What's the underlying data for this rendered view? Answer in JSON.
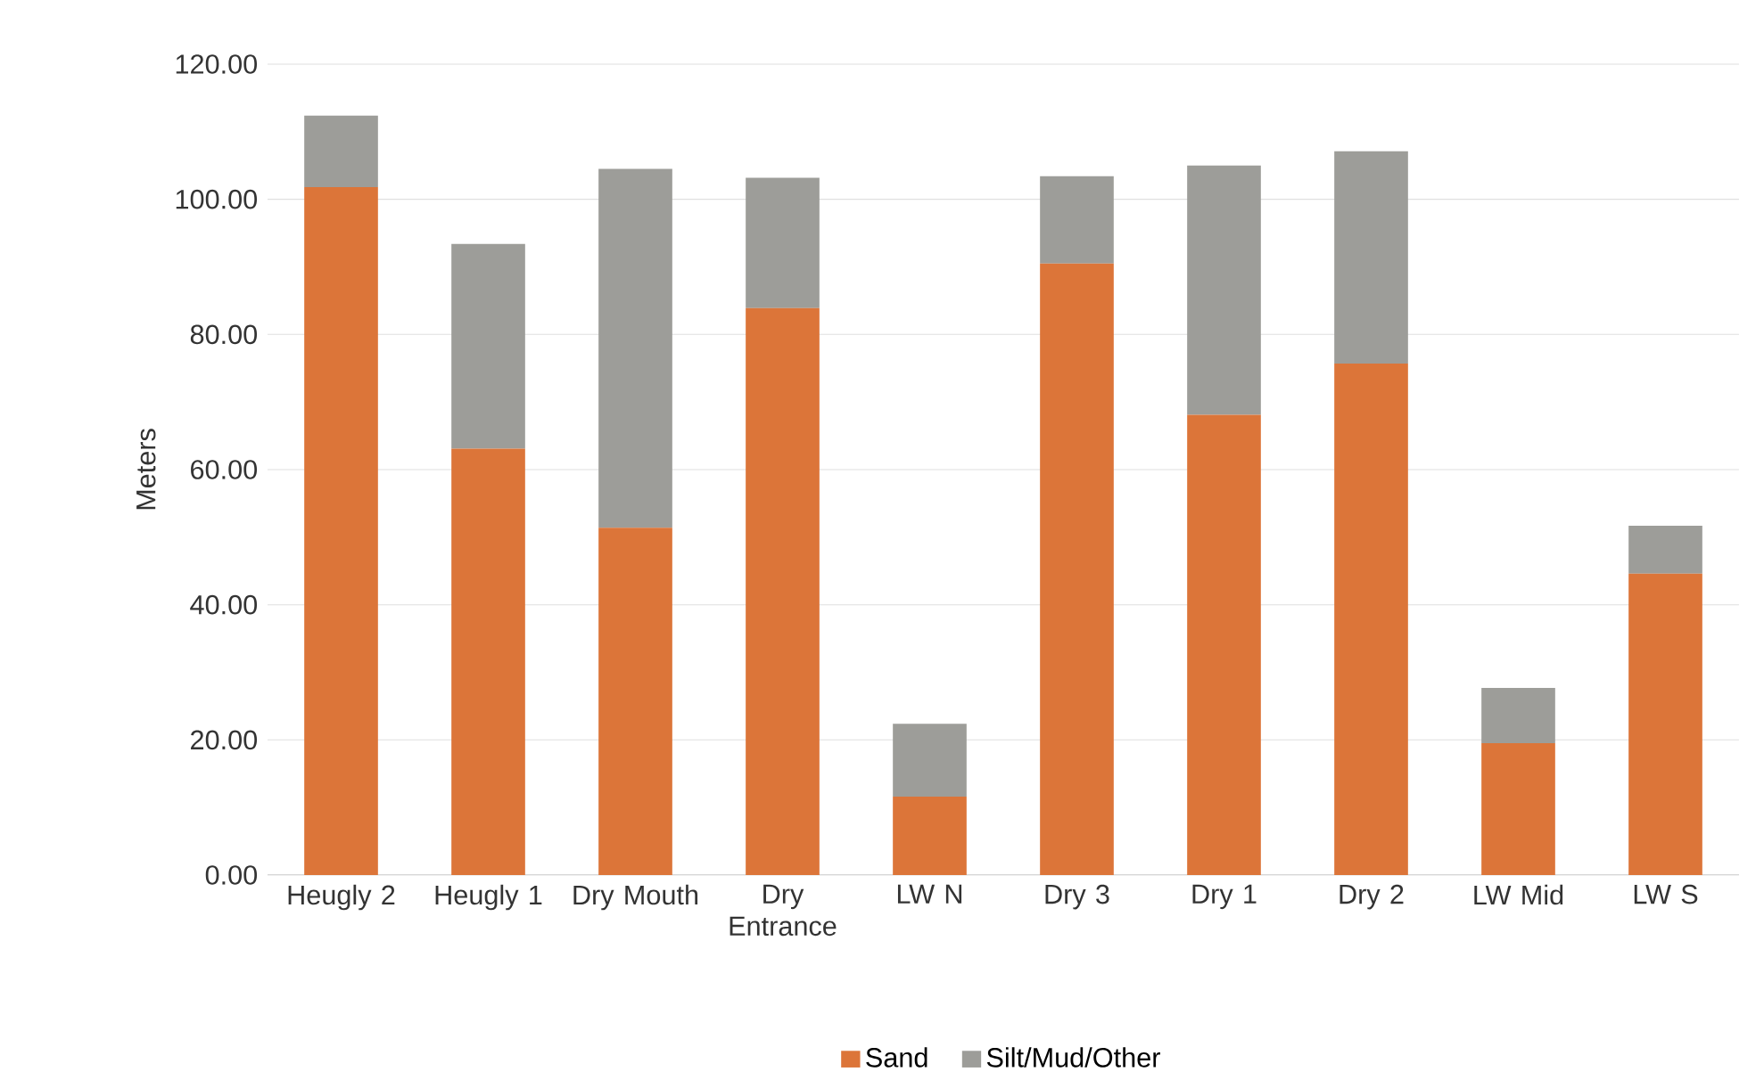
{
  "chart_data": {
    "type": "bar",
    "stacked": true,
    "ylabel": "Meters",
    "categories": [
      "Heugly 2",
      "Heugly 1",
      "Dry Mouth",
      "Dry Entrance",
      "LW N",
      "Dry 3",
      "Dry 1",
      "Dry 2",
      "LW Mid",
      "LW S"
    ],
    "series": [
      {
        "name": "Sand",
        "color": "#dc7539",
        "values": [
          101.8,
          63.1,
          51.4,
          83.9,
          11.6,
          90.5,
          68.1,
          75.7,
          19.5,
          44.6
        ]
      },
      {
        "name": "Silt/Mud/Other",
        "color": "#9d9d99",
        "values": [
          10.6,
          30.3,
          53.1,
          19.3,
          10.8,
          12.9,
          36.9,
          31.4,
          8.2,
          7.1
        ]
      }
    ],
    "ylim": [
      0,
      120
    ],
    "yticks": [
      {
        "value": 0,
        "label": "0.00"
      },
      {
        "value": 20,
        "label": "20.00"
      },
      {
        "value": 40,
        "label": "40.00"
      },
      {
        "value": 60,
        "label": "60.00"
      },
      {
        "value": 80,
        "label": "80.00"
      },
      {
        "value": 100,
        "label": "100.00"
      },
      {
        "value": 120,
        "label": "120.00"
      }
    ],
    "grid": "y",
    "legend": "bottom"
  }
}
